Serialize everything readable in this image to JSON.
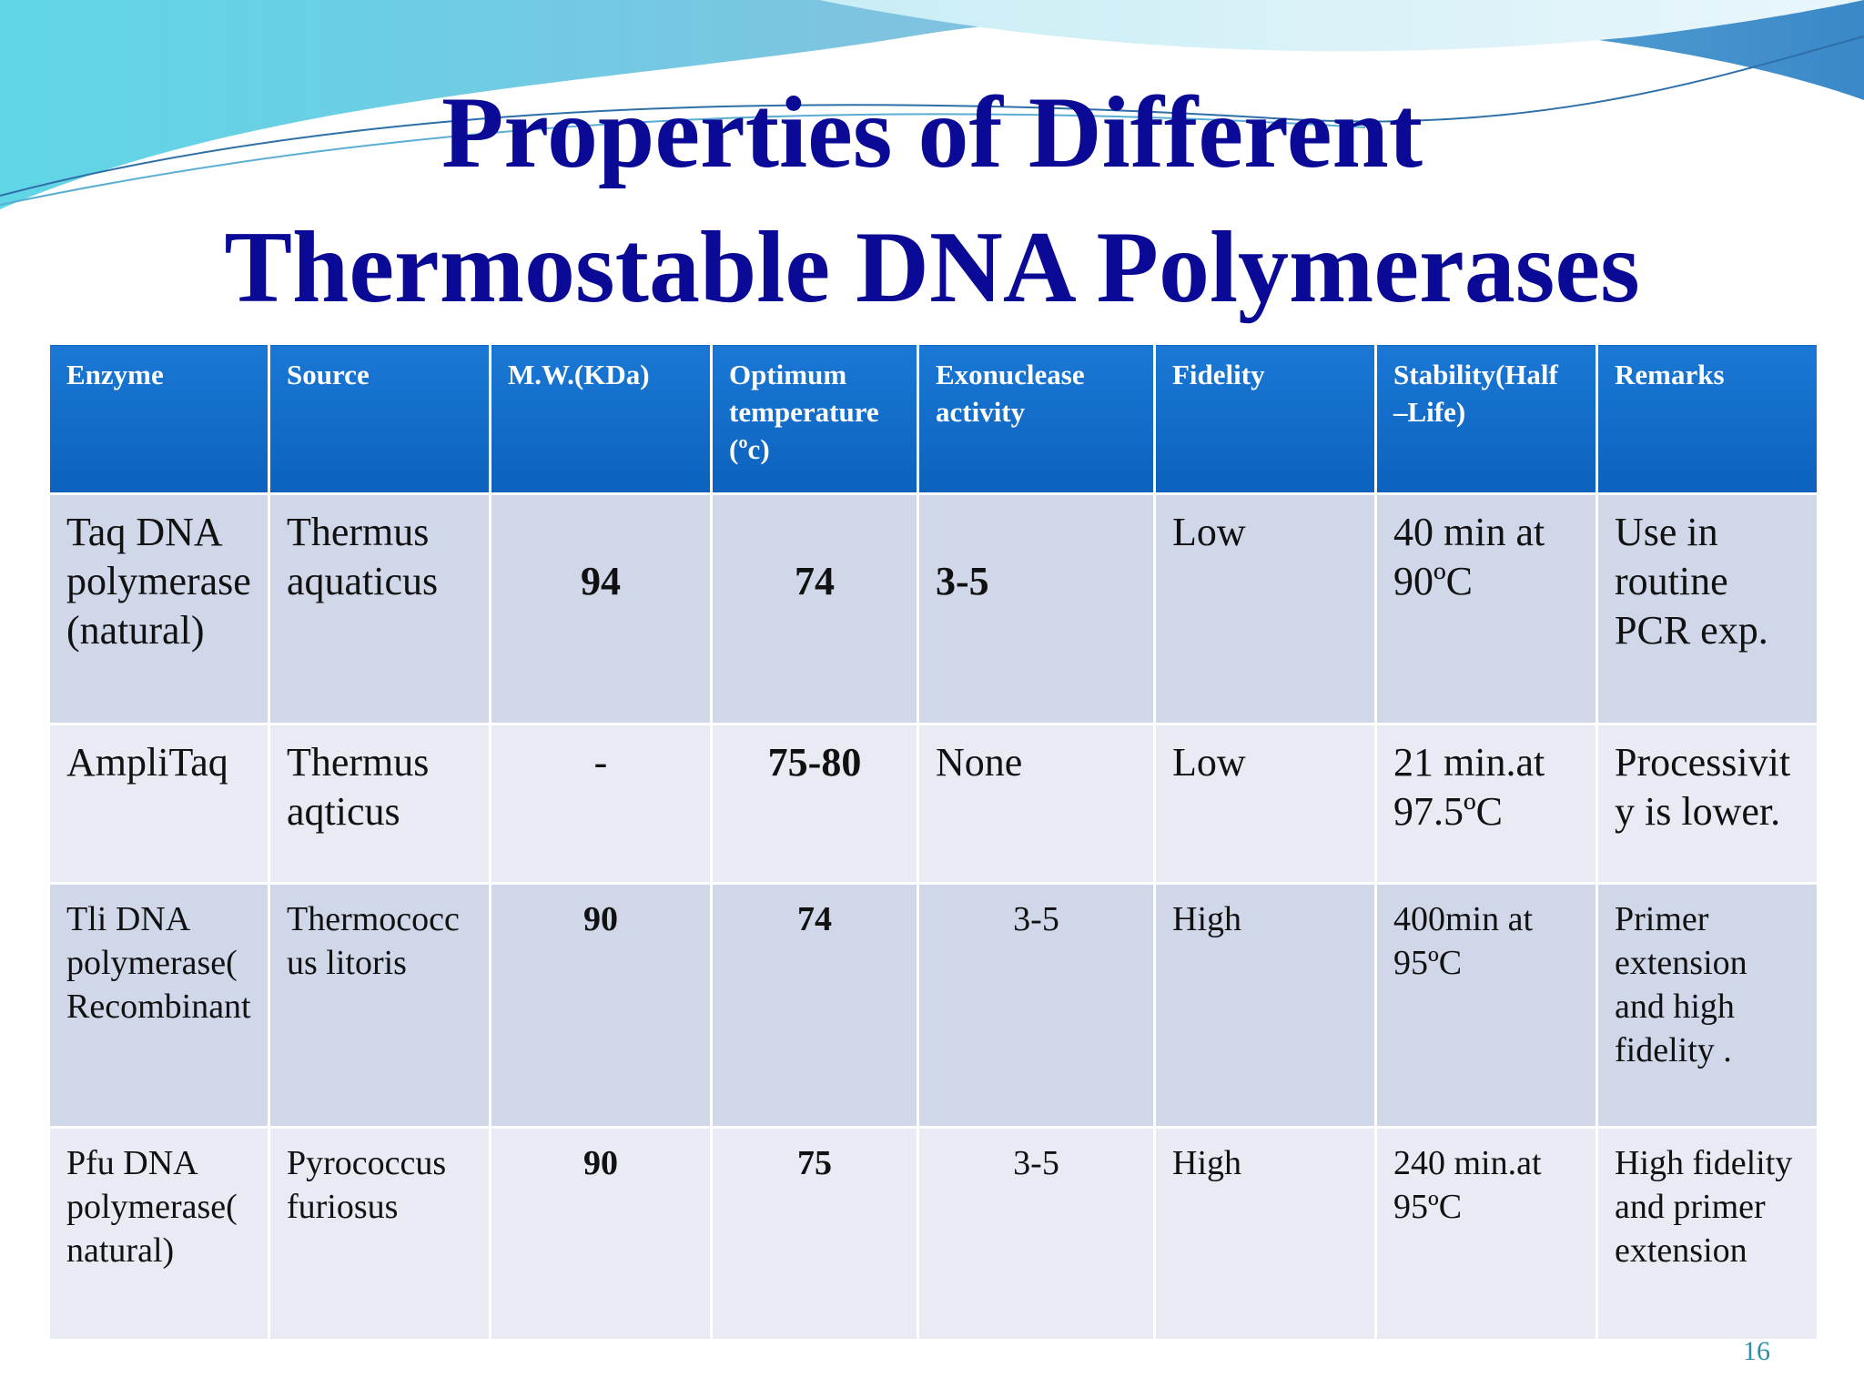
{
  "title_lines": [
    "Properties of Different",
    "Thermostable DNA Polymerases"
  ],
  "table": {
    "header": [
      "Enzyme",
      "Source",
      "M.W.(KDa)",
      "Optimum temperature (ºc)",
      "Exonuclease activity",
      "Fidelity",
      "Stability(Half –Life)",
      "Remarks"
    ],
    "rows": [
      [
        "Taq DNA polymerase(natural)",
        "Thermus aquaticus",
        "94",
        "74",
        "3-5",
        "Low",
        "40 min at 90ºC",
        "Use in routine PCR exp."
      ],
      [
        "AmpliTaq",
        "Thermus aqticus",
        "-",
        "75-80",
        "None",
        "Low",
        "21 min.at 97.5ºC",
        "Processivity is lower."
      ],
      [
        "Tli DNA polymerase(Recombinant",
        "Thermococcus litoris",
        "90",
        "74",
        "3-5",
        "High",
        "400min at 95ºC",
        "Primer extension and high fidelity ."
      ],
      [
        "Pfu DNA polymerase(natural)",
        "Pyrococcus furiosus",
        "90",
        "75",
        "3-5",
        "High",
        "240 min.at 95ºC",
        "High fidelity and primer extension"
      ]
    ]
  },
  "page_number": "16"
}
